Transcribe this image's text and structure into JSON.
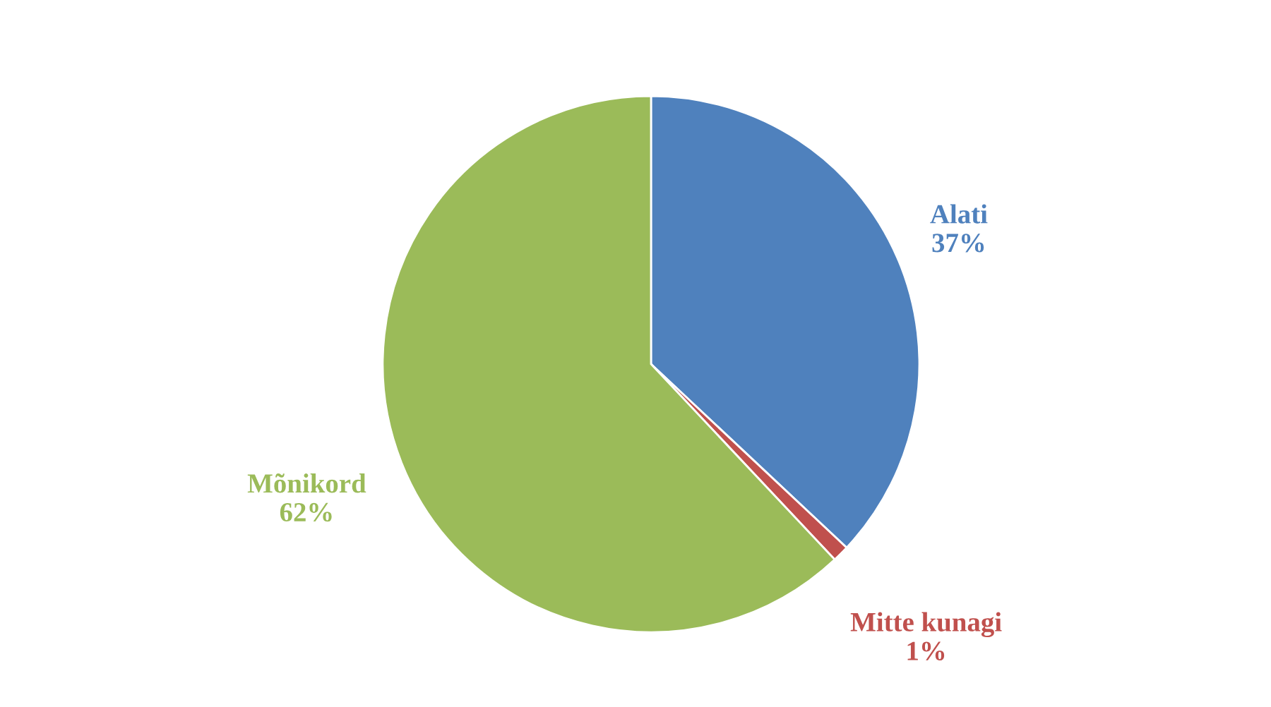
{
  "chart_data": {
    "type": "pie",
    "categories": [
      "Alati",
      "Mitte kunagi",
      "Mõnikord"
    ],
    "values": [
      37,
      1,
      62
    ],
    "colors": [
      "#4f81bd",
      "#c0504d",
      "#9bbb59"
    ],
    "value_labels": [
      "37%",
      "1%",
      "62%"
    ],
    "legend": false
  }
}
